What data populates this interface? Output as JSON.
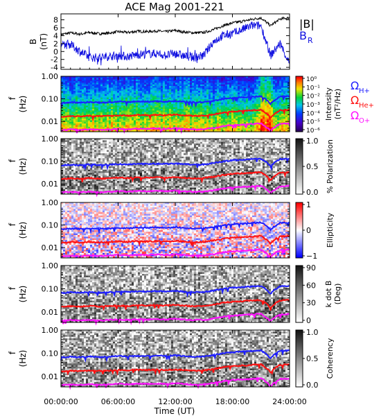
{
  "title": "ACE Mag 2001-221",
  "colors": {
    "btotal": "#000000",
    "br": "#1010e0",
    "h_plus": "#1d1dff",
    "he_plus": "#ff1010",
    "o_plus": "#ff10ff",
    "frame": "#000000"
  },
  "xaxis": {
    "label": "Time (UT)",
    "ticks": [
      "00:00:00",
      "06:00:00",
      "12:00:00",
      "18:00:00",
      "24:00:00"
    ],
    "range_hours": [
      0,
      24
    ]
  },
  "chart_data": [
    {
      "type": "line",
      "panel": "magnetic-field",
      "ylabel": "B (nT)",
      "yticks": [
        "-4",
        "-2",
        "0",
        "2",
        "4",
        "6",
        "8"
      ],
      "ylim": [
        -4.5,
        9.5
      ],
      "legend": [
        "|B|",
        "B_R"
      ],
      "x_hours": [
        0,
        1,
        2,
        3,
        4,
        5,
        6,
        7,
        8,
        9,
        10,
        11,
        12,
        13,
        14,
        15,
        16,
        17,
        18,
        19,
        20,
        21,
        22,
        23,
        24
      ],
      "series": [
        {
          "name": "|B|",
          "values": [
            4.3,
            4.7,
            4.4,
            4.8,
            4.5,
            4.6,
            5.0,
            4.8,
            5.1,
            5.0,
            5.2,
            5.0,
            5.3,
            4.9,
            4.7,
            4.8,
            5.5,
            6.5,
            7.2,
            7.6,
            8.1,
            8.5,
            6.5,
            8.2,
            8.5
          ]
        },
        {
          "name": "B_R",
          "values": [
            1.5,
            1.8,
            0.0,
            -1.5,
            -1.5,
            -1.2,
            -1.0,
            -1.3,
            -0.8,
            -0.6,
            -0.5,
            -1.0,
            -0.5,
            -1.2,
            -1.5,
            -1.0,
            2.5,
            4.0,
            4.5,
            5.5,
            6.5,
            6.5,
            -1.0,
            2.0,
            -3.0
          ]
        }
      ]
    },
    {
      "type": "heatmap",
      "panel": "power-spectrum",
      "ylabel": "f (Hz)",
      "yticks": [
        "1.00",
        "0.10",
        "0.01"
      ],
      "ylim": [
        0.0035,
        1.0
      ],
      "yscale": "log",
      "colorbar": {
        "label": "Intensity (nT²/Hz)",
        "ticks": [
          "10⁰",
          "10⁻¹",
          "10⁻²",
          "10⁻³",
          "10⁻⁴",
          "10⁻⁵",
          "10⁻⁶"
        ],
        "range": [
          -6.5,
          0
        ]
      },
      "legend": [
        "ΩH+",
        "ΩHe+",
        "ΩO+"
      ]
    },
    {
      "type": "heatmap",
      "panel": "polarization",
      "ylabel": "f (Hz)",
      "yticks": [
        "1.00",
        "0.10",
        "0.01"
      ],
      "ylim": [
        0.0035,
        1.0
      ],
      "yscale": "log",
      "colorbar": {
        "label": "% Polarization",
        "ticks": [
          "1.0",
          "0.5",
          "0.0"
        ],
        "range": [
          0,
          1
        ]
      }
    },
    {
      "type": "heatmap",
      "panel": "ellipticity",
      "ylabel": "f (Hz)",
      "yticks": [
        "1.00",
        "0.10",
        "0.01"
      ],
      "ylim": [
        0.0035,
        1.0
      ],
      "yscale": "log",
      "colorbar": {
        "label": "Ellipticity",
        "ticks": [
          "1",
          "0",
          "−1"
        ],
        "range": [
          -1,
          1
        ]
      }
    },
    {
      "type": "heatmap",
      "panel": "wave-normal-angle",
      "ylabel": "f (Hz)",
      "yticks": [
        "1.00",
        "0.10",
        "0.01"
      ],
      "ylim": [
        0.0035,
        1.0
      ],
      "yscale": "log",
      "colorbar": {
        "label": "k dot B (Deg)",
        "ticks": [
          "90",
          "60",
          "30",
          "0"
        ],
        "range": [
          0,
          90
        ]
      }
    },
    {
      "type": "heatmap",
      "panel": "coherency",
      "ylabel": "f (Hz)",
      "yticks": [
        "1.00",
        "0.10",
        "0.01"
      ],
      "ylim": [
        0.0035,
        1.0
      ],
      "yscale": "log",
      "colorbar": {
        "label": "Coherency",
        "ticks": [
          "1.0",
          "0.5",
          "0.0"
        ],
        "range": [
          0,
          1
        ]
      }
    }
  ],
  "gyrofrequencies": {
    "x_hours": [
      0,
      1,
      2,
      3,
      4,
      5,
      6,
      7,
      8,
      9,
      10,
      11,
      12,
      13,
      14,
      15,
      16,
      17,
      18,
      19,
      20,
      21,
      22,
      23,
      24
    ],
    "h_plus_hz": [
      0.065,
      0.07,
      0.067,
      0.072,
      0.068,
      0.07,
      0.075,
      0.072,
      0.077,
      0.075,
      0.078,
      0.075,
      0.08,
      0.074,
      0.07,
      0.072,
      0.082,
      0.098,
      0.11,
      0.116,
      0.123,
      0.13,
      0.06,
      0.125,
      0.13
    ],
    "he_plus_hz": [
      0.016,
      0.0175,
      0.0167,
      0.018,
      0.017,
      0.0175,
      0.0187,
      0.018,
      0.0192,
      0.0187,
      0.0195,
      0.0187,
      0.02,
      0.0185,
      0.0175,
      0.018,
      0.0205,
      0.0245,
      0.0275,
      0.029,
      0.031,
      0.0325,
      0.015,
      0.031,
      0.0325
    ],
    "o_plus_hz": [
      0.0041,
      0.0044,
      0.0042,
      0.0045,
      0.0042,
      0.0044,
      0.0047,
      0.0045,
      0.0048,
      0.0047,
      0.0049,
      0.0047,
      0.005,
      0.0046,
      0.0044,
      0.0045,
      0.0051,
      0.0061,
      0.0069,
      0.0072,
      0.0077,
      0.0081,
      0.0038,
      0.0077,
      0.0081
    ]
  }
}
